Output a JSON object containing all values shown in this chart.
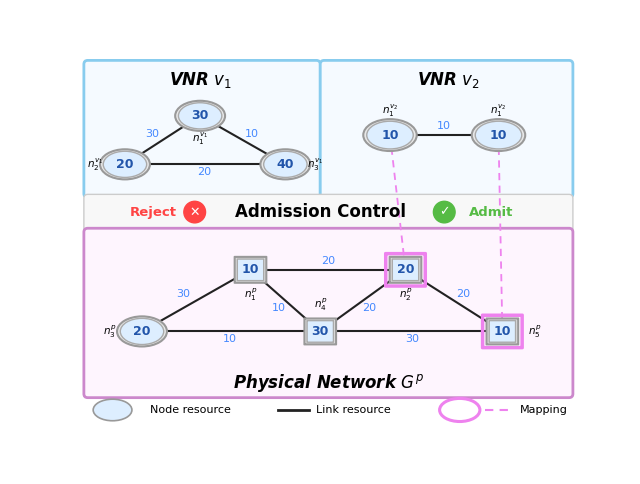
{
  "fig_width": 6.4,
  "fig_height": 4.84,
  "bg_color": "#ffffff",
  "node_fill": "#ddeeff",
  "node_outer_edge": "#aaaaaa",
  "node_inner_edge": "#bbbbbb",
  "mapping_pink": "#ee82ee",
  "link_color": "#222222",
  "label_blue": "#4488ff",
  "vnr_box_edge": "#88ccee",
  "pn_box_edge": "#cc88cc",
  "ac_bg": "#f8f8f8",
  "vnr_bg": "#f5faff",
  "pn_bg": "#fef5fe",
  "reject_red": "#ff4444",
  "admit_green": "#55bb44",
  "vnr1_title": "VNR $v_1$",
  "vnr2_title": "VNR $v_2$",
  "pn_title": "Physical Network $G^p$"
}
